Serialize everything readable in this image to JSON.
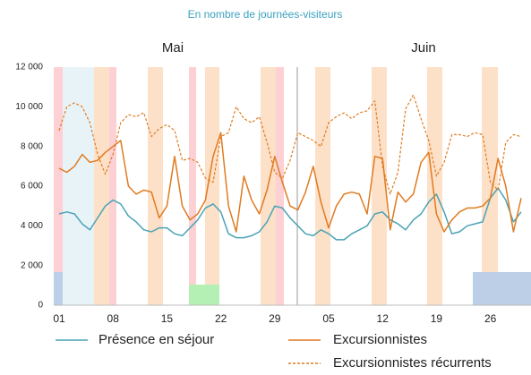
{
  "chart_data": {
    "type": "line",
    "subtitle": "En nombre de journées-visiteurs",
    "month_labels": [
      "Mai",
      "Juin"
    ],
    "categories": [
      "01",
      null,
      null,
      null,
      null,
      null,
      null,
      "08",
      null,
      null,
      null,
      null,
      null,
      null,
      "15",
      null,
      null,
      null,
      null,
      null,
      null,
      "22",
      null,
      null,
      null,
      null,
      null,
      null,
      "29",
      null,
      null,
      null,
      null,
      null,
      null,
      "05",
      null,
      null,
      null,
      null,
      null,
      null,
      "12",
      null,
      null,
      null,
      null,
      null,
      null,
      "19",
      null,
      null,
      null,
      null,
      null,
      null,
      "26",
      null,
      null,
      null,
      null
    ],
    "series": [
      {
        "name": "Présence en séjour",
        "color": "#4aa3b5",
        "dash": false,
        "values": [
          4600,
          4700,
          4600,
          4100,
          3800,
          4400,
          5000,
          5300,
          5100,
          4500,
          4200,
          3800,
          3700,
          3900,
          3900,
          3600,
          3500,
          3900,
          4300,
          4900,
          5100,
          4700,
          3600,
          3400,
          3400,
          3500,
          3700,
          4200,
          5000,
          4900,
          4400,
          4000,
          3600,
          3500,
          3800,
          3600,
          3300,
          3300,
          3600,
          3800,
          4000,
          4600,
          4700,
          4300,
          4100,
          3800,
          4300,
          4600,
          5200,
          5600,
          4700,
          3600,
          3700,
          4000,
          4100,
          4200,
          5400,
          5900,
          5300,
          4200,
          4700
        ]
      },
      {
        "name": "Excursionnistes",
        "color": "#e07b20",
        "dash": false,
        "values": [
          6900,
          6700,
          7000,
          7600,
          7200,
          7300,
          7700,
          8000,
          8300,
          6000,
          5600,
          5800,
          5700,
          4400,
          5000,
          7500,
          5000,
          4300,
          4600,
          5300,
          7500,
          8700,
          5000,
          3700,
          6500,
          5300,
          4600,
          5800,
          7500,
          6200,
          5000,
          4800,
          5700,
          7000,
          5200,
          3900,
          5000,
          5600,
          5700,
          5600,
          4600,
          7500,
          7400,
          3800,
          5700,
          5200,
          5600,
          7200,
          7700,
          4600,
          3700,
          4300,
          4700,
          4900,
          4900,
          5000,
          5400,
          7400,
          6000,
          3700,
          5400
        ]
      },
      {
        "name": "Excursionnistes récurrents",
        "color": "#e07b20",
        "dash": true,
        "values": [
          8800,
          10000,
          10200,
          10000,
          9200,
          7600,
          6600,
          7600,
          9200,
          9600,
          9500,
          9700,
          8500,
          8900,
          9100,
          8800,
          7300,
          7400,
          7200,
          6400,
          6200,
          8500,
          8700,
          10000,
          9400,
          9200,
          9500,
          8200,
          6700,
          6400,
          7300,
          8700,
          8500,
          8300,
          8000,
          9200,
          9500,
          9700,
          9400,
          9700,
          9800,
          10300,
          7000,
          5600,
          6700,
          9900,
          10600,
          9400,
          8300,
          6500,
          7200,
          8600,
          8600,
          8500,
          8700,
          8600,
          6200,
          5800,
          8200,
          8600,
          8500
        ]
      }
    ],
    "ylim": [
      0,
      12000
    ],
    "yticks": [
      0,
      {
        "value": 2000,
        "label": "2 000"
      },
      {
        "value": 4000,
        "label": "4 000"
      },
      {
        "value": 6000,
        "label": "6 000"
      },
      {
        "value": 8000,
        "label": "8 000"
      },
      {
        "value": 10000,
        "label": "10 000"
      },
      {
        "value": 12000,
        "label": "12 000"
      }
    ]
  }
}
